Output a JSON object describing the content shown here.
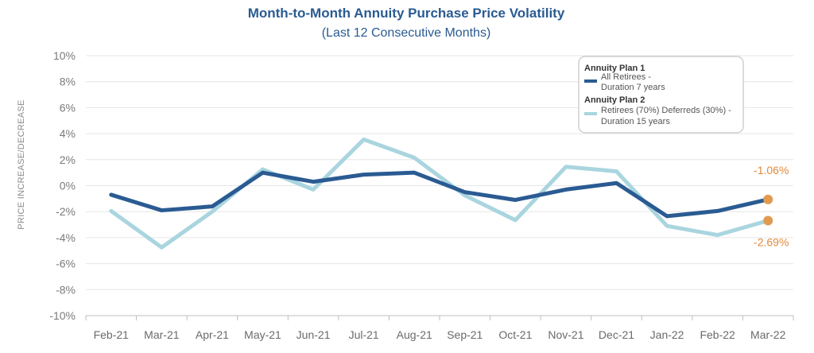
{
  "chart_data": {
    "type": "line",
    "title": "Month-to-Month Annuity Purchase Price Volatility",
    "subtitle": "(Last 12 Consecutive Months)",
    "xlabel": "",
    "ylabel": "PRICE INCREASE/DECREASE",
    "ylim": [
      -10,
      10
    ],
    "yticks": [
      "10%",
      "8%",
      "6%",
      "4%",
      "2%",
      "0%",
      "-2%",
      "-4%",
      "-6%",
      "-8%",
      "-10%"
    ],
    "ytick_values": [
      10,
      8,
      6,
      4,
      2,
      0,
      -2,
      -4,
      -6,
      -8,
      -10
    ],
    "categories": [
      "Feb-21",
      "Mar-21",
      "Apr-21",
      "May-21",
      "Jun-21",
      "Jul-21",
      "Aug-21",
      "Sep-21",
      "Oct-21",
      "Nov-21",
      "Dec-21",
      "Jan-22",
      "Feb-22",
      "Mar-22"
    ],
    "series": [
      {
        "name": "Annuity Plan 1",
        "legend_heading": "Annuity Plan 1",
        "legend_lines": [
          "All Retirees -",
          "Duration 7 years"
        ],
        "color": "#2a5b92",
        "values": [
          -0.7,
          -1.9,
          -1.6,
          1.0,
          0.3,
          0.85,
          1.0,
          -0.5,
          -1.1,
          -0.3,
          0.2,
          -2.35,
          -1.95,
          -1.06
        ],
        "end_label": "-1.06%"
      },
      {
        "name": "Annuity Plan 2",
        "legend_heading": "Annuity Plan 2",
        "legend_lines": [
          "Retirees (70%) Deferreds (30%) -",
          "Duration 15 years"
        ],
        "color": "#a9d5df",
        "values": [
          -1.95,
          -4.75,
          -2.0,
          1.25,
          -0.3,
          3.55,
          2.15,
          -0.75,
          -2.65,
          1.45,
          1.1,
          -3.1,
          -3.8,
          -2.69
        ],
        "end_label": "-2.69%"
      }
    ],
    "grid": true,
    "legend_position": "top-right",
    "end_marker_color": "#e09a52",
    "end_label_color": "#e4893a"
  }
}
